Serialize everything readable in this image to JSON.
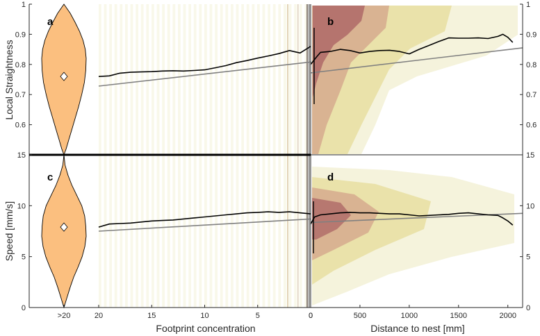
{
  "chart_data": {
    "type": "composite",
    "colors": {
      "violin_fill": "#fbbf7f",
      "trend_line": "#000000",
      "fit_line": "#808080",
      "density_low": "#f4f2d8",
      "density_mid": "#e6dc9a",
      "density_high": "#d2a088",
      "density_peak": "#a85f62"
    },
    "y_axes": {
      "top": {
        "label": "Local Straightness",
        "ylim": [
          0.5,
          1.0
        ],
        "ticks": [
          "0.6",
          "0.7",
          "0.8",
          "0.9",
          "1"
        ],
        "ticks_right": [
          "0.6",
          "0.7",
          "0.8",
          "0.9",
          "1"
        ]
      },
      "bottom": {
        "label": "Speed [mm/s]",
        "ylim": [
          0,
          15
        ],
        "ticks": [
          "0",
          "5",
          "10",
          "15"
        ],
        "ticks_right": [
          "0",
          "5",
          "10",
          "15"
        ]
      }
    },
    "x_axes": {
      "left": {
        "label": "Footprint concentration",
        "xlim": [
          20,
          0
        ],
        "ticks": [
          "20",
          "15",
          "10",
          "5",
          "0"
        ],
        "violin_tick": ">20"
      },
      "right": {
        "label": "Distance to nest [mm]",
        "xlim": [
          0,
          2150
        ],
        "ticks": [
          "0",
          "500",
          "1000",
          "1500",
          "2000"
        ]
      }
    },
    "panels": [
      {
        "id": "a",
        "label": "a",
        "kind": "violin",
        "metric": "straightness",
        "category": ">20",
        "median": 0.76,
        "profile": [
          [
            0.5,
            0.0
          ],
          [
            0.52,
            0.1
          ],
          [
            0.55,
            0.22
          ],
          [
            0.58,
            0.34
          ],
          [
            0.62,
            0.5
          ],
          [
            0.66,
            0.66
          ],
          [
            0.7,
            0.8
          ],
          [
            0.74,
            0.92
          ],
          [
            0.78,
            0.98
          ],
          [
            0.82,
            1.0
          ],
          [
            0.85,
            0.96
          ],
          [
            0.88,
            0.86
          ],
          [
            0.91,
            0.7
          ],
          [
            0.94,
            0.5
          ],
          [
            0.97,
            0.28
          ],
          [
            1.0,
            0.0
          ]
        ]
      },
      {
        "id": "a",
        "kind": "line",
        "metric": "straightness",
        "trend": {
          "x": [
            20,
            19,
            18,
            17,
            16,
            15,
            14,
            13,
            12,
            11,
            10,
            9,
            8,
            7,
            6,
            5,
            4,
            3,
            2,
            1,
            0
          ],
          "y": [
            0.76,
            0.762,
            0.771,
            0.774,
            0.775,
            0.776,
            0.778,
            0.779,
            0.778,
            0.78,
            0.782,
            0.789,
            0.796,
            0.806,
            0.813,
            0.821,
            0.828,
            0.836,
            0.846,
            0.838,
            0.86
          ]
        },
        "fit": {
          "x": [
            20,
            0
          ],
          "y": [
            0.728,
            0.808
          ]
        }
      },
      {
        "id": "b",
        "label": "b",
        "kind": "density+line",
        "metric": "straightness",
        "trend": {
          "x": [
            0,
            60,
            100,
            200,
            300,
            400,
            500,
            600,
            700,
            800,
            900,
            1000,
            1100,
            1200,
            1300,
            1400,
            1500,
            1600,
            1700,
            1800,
            1900,
            1950,
            2000,
            2050
          ],
          "y": [
            0.8,
            0.825,
            0.84,
            0.843,
            0.85,
            0.846,
            0.838,
            0.843,
            0.846,
            0.847,
            0.843,
            0.835,
            0.85,
            0.863,
            0.876,
            0.888,
            0.887,
            0.887,
            0.888,
            0.886,
            0.893,
            0.9,
            0.89,
            0.873
          ]
        },
        "fit": {
          "x": [
            0,
            2150
          ],
          "y": [
            0.772,
            0.855
          ]
        }
      },
      {
        "id": "c",
        "label": "c",
        "kind": "violin",
        "metric": "speed",
        "category": ">20",
        "median": 7.9,
        "profile": [
          [
            0.0,
            0.0
          ],
          [
            1.0,
            0.14
          ],
          [
            2.0,
            0.28
          ],
          [
            3.0,
            0.44
          ],
          [
            4.0,
            0.64
          ],
          [
            5.0,
            0.82
          ],
          [
            6.0,
            0.94
          ],
          [
            7.0,
            1.0
          ],
          [
            8.0,
            0.98
          ],
          [
            9.0,
            0.93
          ],
          [
            10.0,
            0.8
          ],
          [
            11.0,
            0.58
          ],
          [
            12.0,
            0.36
          ],
          [
            13.0,
            0.18
          ],
          [
            14.0,
            0.05
          ],
          [
            15.0,
            0.0
          ]
        ]
      },
      {
        "id": "c",
        "kind": "line",
        "metric": "speed",
        "trend": {
          "x": [
            20,
            19,
            18,
            17,
            16,
            15,
            14,
            13,
            12,
            11,
            10,
            9,
            8,
            7,
            6,
            5,
            4,
            3,
            2,
            1,
            0
          ],
          "y": [
            7.9,
            8.2,
            8.25,
            8.3,
            8.4,
            8.5,
            8.55,
            8.6,
            8.7,
            8.8,
            8.9,
            9.0,
            9.1,
            9.2,
            9.3,
            9.35,
            9.4,
            9.35,
            9.4,
            9.3,
            9.2
          ]
        },
        "fit": {
          "x": [
            20,
            0
          ],
          "y": [
            7.5,
            8.7
          ]
        }
      },
      {
        "id": "d",
        "label": "d",
        "kind": "density+line",
        "metric": "speed",
        "trend": {
          "x": [
            0,
            40,
            100,
            200,
            300,
            400,
            500,
            600,
            700,
            800,
            900,
            1000,
            1100,
            1200,
            1300,
            1400,
            1500,
            1600,
            1700,
            1800,
            1900,
            1950,
            2000,
            2050
          ],
          "y": [
            8.2,
            8.9,
            9.1,
            9.2,
            9.3,
            9.35,
            9.3,
            9.3,
            9.25,
            9.2,
            9.2,
            9.1,
            9.0,
            9.05,
            9.1,
            9.15,
            9.25,
            9.3,
            9.2,
            9.1,
            9.05,
            8.8,
            8.5,
            8.1
          ]
        },
        "fit": {
          "x": [
            0,
            2150
          ],
          "y": [
            8.35,
            9.25
          ]
        }
      }
    ]
  }
}
